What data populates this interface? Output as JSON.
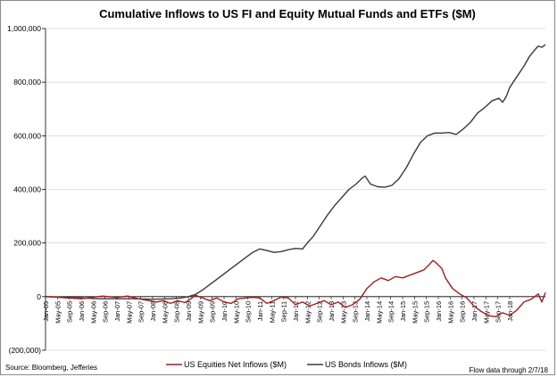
{
  "chart_data": {
    "type": "line",
    "title": "Cumulative Inflows to US FI and Equity Mutual Funds and ETFs ($M)",
    "xlabel": "",
    "ylabel": "",
    "ylim": [
      -200000,
      1000000
    ],
    "y_ticks": [
      "1,000,000",
      "800,000",
      "600,000",
      "400,000",
      "200,000",
      "0",
      "(200,000)"
    ],
    "x_tick_labels": [
      "Jan-05",
      "May-05",
      "Sep-05",
      "Jan-06",
      "May-06",
      "Sep-06",
      "Jan-07",
      "May-07",
      "Sep-07",
      "Jan-08",
      "May-08",
      "Sep-08",
      "Jan-09",
      "May-09",
      "Sep-09",
      "Jan-10",
      "May-10",
      "Sep-10",
      "Jan-11",
      "May-11",
      "Sep-11",
      "Jan-12",
      "May-12",
      "Sep-12",
      "Jan-13",
      "May-13",
      "Sep-13",
      "Jan-14",
      "May-14",
      "Sep-14",
      "Jan-15",
      "May-15",
      "Sep-15",
      "Jan-16",
      "May-16",
      "Sep-16",
      "Jan-17",
      "May-17",
      "Sep-17",
      "Jan-18"
    ],
    "grid": true,
    "legend_position": "bottom",
    "source": "Source: Bloomberg, Jefferies",
    "note": "Flow data through 2/7/18",
    "series": [
      {
        "name": "US Bonds Inflows ($M)",
        "color": "#3a3a3a",
        "points": [
          [
            2005.0,
            0
          ],
          [
            2005.5,
            -2000
          ],
          [
            2006.0,
            -5000
          ],
          [
            2006.5,
            -8000
          ],
          [
            2007.0,
            -8000
          ],
          [
            2007.5,
            -8000
          ],
          [
            2008.0,
            -10000
          ],
          [
            2008.5,
            -8000
          ],
          [
            2008.8,
            -5000
          ],
          [
            2009.0,
            0
          ],
          [
            2009.2,
            8000
          ],
          [
            2009.4,
            25000
          ],
          [
            2009.6,
            45000
          ],
          [
            2009.8,
            65000
          ],
          [
            2010.0,
            85000
          ],
          [
            2010.2,
            105000
          ],
          [
            2010.4,
            125000
          ],
          [
            2010.6,
            145000
          ],
          [
            2010.8,
            165000
          ],
          [
            2011.0,
            178000
          ],
          [
            2011.2,
            172000
          ],
          [
            2011.4,
            165000
          ],
          [
            2011.6,
            168000
          ],
          [
            2011.8,
            175000
          ],
          [
            2012.0,
            180000
          ],
          [
            2012.2,
            178000
          ],
          [
            2012.3,
            195000
          ],
          [
            2012.5,
            225000
          ],
          [
            2012.7,
            265000
          ],
          [
            2012.9,
            305000
          ],
          [
            2013.1,
            340000
          ],
          [
            2013.3,
            370000
          ],
          [
            2013.5,
            400000
          ],
          [
            2013.7,
            420000
          ],
          [
            2013.85,
            440000
          ],
          [
            2013.95,
            450000
          ],
          [
            2014.1,
            420000
          ],
          [
            2014.3,
            410000
          ],
          [
            2014.5,
            408000
          ],
          [
            2014.7,
            415000
          ],
          [
            2014.9,
            440000
          ],
          [
            2015.1,
            480000
          ],
          [
            2015.3,
            530000
          ],
          [
            2015.5,
            575000
          ],
          [
            2015.7,
            600000
          ],
          [
            2015.9,
            610000
          ],
          [
            2016.1,
            610000
          ],
          [
            2016.3,
            612000
          ],
          [
            2016.5,
            605000
          ],
          [
            2016.7,
            625000
          ],
          [
            2016.9,
            650000
          ],
          [
            2017.1,
            685000
          ],
          [
            2017.3,
            705000
          ],
          [
            2017.5,
            730000
          ],
          [
            2017.7,
            740000
          ],
          [
            2017.8,
            725000
          ],
          [
            2017.9,
            745000
          ],
          [
            2018.0,
            780000
          ],
          [
            2018.2,
            820000
          ],
          [
            2018.4,
            860000
          ],
          [
            2018.55,
            895000
          ],
          [
            2018.7,
            920000
          ],
          [
            2018.8,
            935000
          ],
          [
            2018.9,
            930000
          ],
          [
            2019.0,
            940000
          ]
        ]
      },
      {
        "name": "US Equities Net Inflows ($M)",
        "color": "#a01e1e",
        "points": [
          [
            2005.0,
            0
          ],
          [
            2005.3,
            -2000
          ],
          [
            2005.6,
            -5000
          ],
          [
            2006.0,
            -8000
          ],
          [
            2006.3,
            -3000
          ],
          [
            2006.6,
            2000
          ],
          [
            2007.0,
            -3000
          ],
          [
            2007.3,
            2000
          ],
          [
            2007.6,
            -8000
          ],
          [
            2007.9,
            -15000
          ],
          [
            2008.1,
            -20000
          ],
          [
            2008.3,
            -15000
          ],
          [
            2008.5,
            -25000
          ],
          [
            2008.7,
            -15000
          ],
          [
            2008.9,
            -22000
          ],
          [
            2009.0,
            -15000
          ],
          [
            2009.2,
            5000
          ],
          [
            2009.4,
            -5000
          ],
          [
            2009.6,
            -15000
          ],
          [
            2009.8,
            -5000
          ],
          [
            2010.0,
            -20000
          ],
          [
            2010.2,
            -25000
          ],
          [
            2010.4,
            -8000
          ],
          [
            2010.6,
            -5000
          ],
          [
            2010.8,
            -3000
          ],
          [
            2011.0,
            -5000
          ],
          [
            2011.2,
            -25000
          ],
          [
            2011.4,
            -15000
          ],
          [
            2011.6,
            -2000
          ],
          [
            2011.8,
            -5000
          ],
          [
            2012.0,
            -30000
          ],
          [
            2012.2,
            -20000
          ],
          [
            2012.4,
            -35000
          ],
          [
            2012.6,
            -25000
          ],
          [
            2012.8,
            -15000
          ],
          [
            2013.0,
            -30000
          ],
          [
            2013.2,
            -20000
          ],
          [
            2013.4,
            -40000
          ],
          [
            2013.6,
            -30000
          ],
          [
            2013.8,
            -10000
          ],
          [
            2014.0,
            30000
          ],
          [
            2014.2,
            55000
          ],
          [
            2014.4,
            70000
          ],
          [
            2014.6,
            60000
          ],
          [
            2014.8,
            75000
          ],
          [
            2015.0,
            70000
          ],
          [
            2015.2,
            80000
          ],
          [
            2015.4,
            90000
          ],
          [
            2015.6,
            100000
          ],
          [
            2015.75,
            120000
          ],
          [
            2015.85,
            135000
          ],
          [
            2015.95,
            125000
          ],
          [
            2016.1,
            105000
          ],
          [
            2016.2,
            70000
          ],
          [
            2016.4,
            30000
          ],
          [
            2016.6,
            10000
          ],
          [
            2016.8,
            -5000
          ],
          [
            2017.0,
            -35000
          ],
          [
            2017.2,
            -55000
          ],
          [
            2017.4,
            -70000
          ],
          [
            2017.6,
            -75000
          ],
          [
            2017.8,
            -60000
          ],
          [
            2018.0,
            -70000
          ],
          [
            2018.2,
            -50000
          ],
          [
            2018.4,
            -20000
          ],
          [
            2018.6,
            -10000
          ],
          [
            2018.8,
            10000
          ],
          [
            2018.9,
            -20000
          ],
          [
            2019.0,
            15000
          ]
        ]
      }
    ]
  }
}
